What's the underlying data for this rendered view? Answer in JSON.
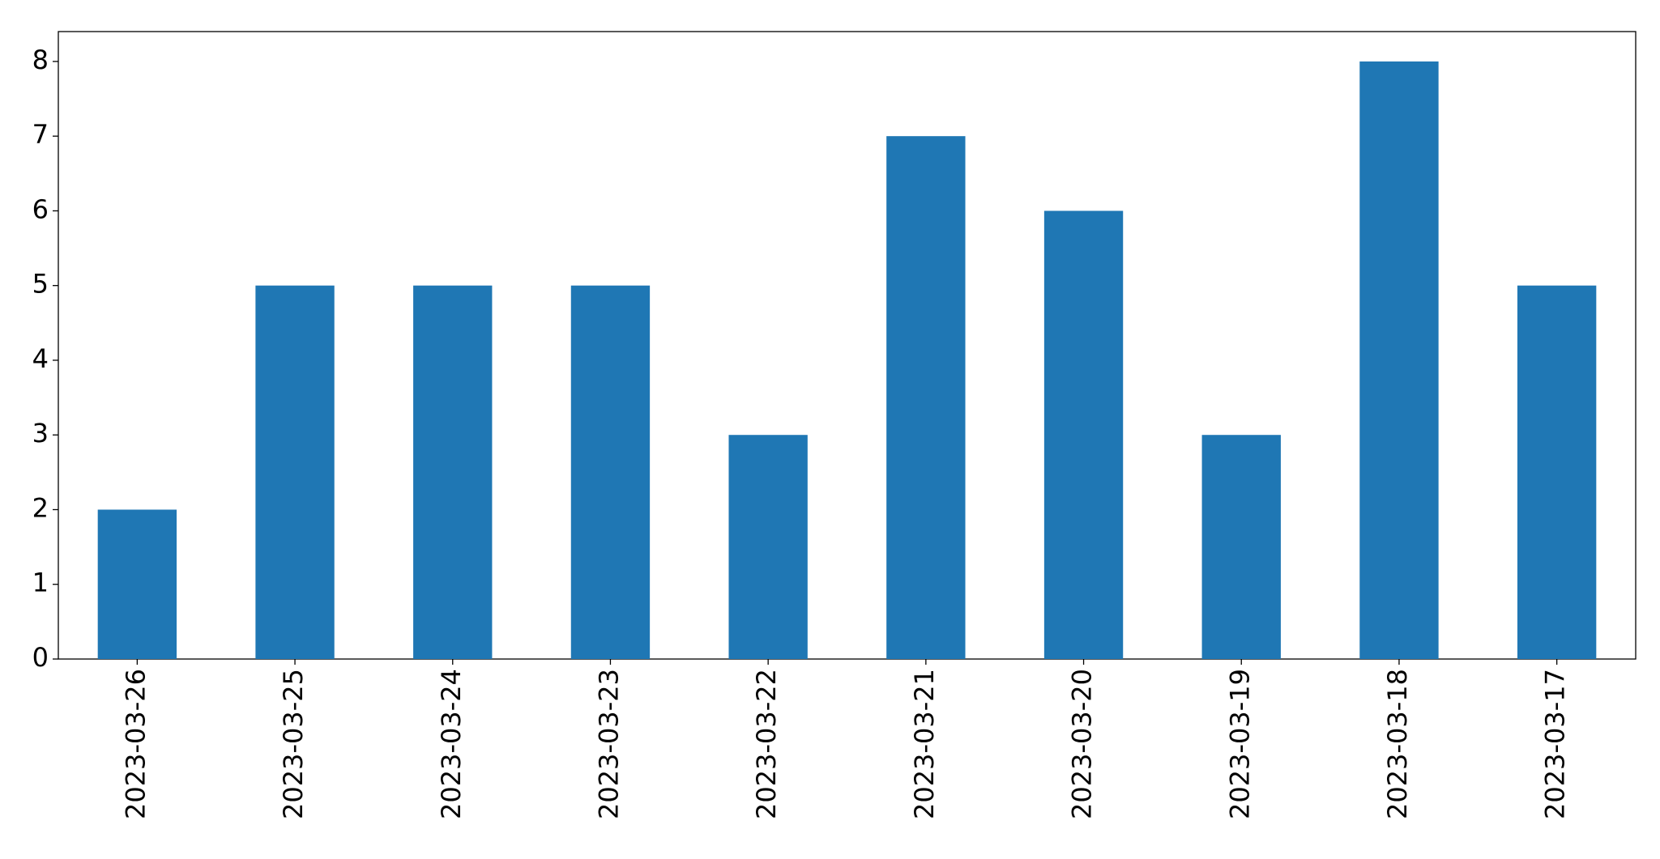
{
  "chart_data": {
    "type": "bar",
    "categories": [
      "2023-03-26",
      "2023-03-25",
      "2023-03-24",
      "2023-03-23",
      "2023-03-22",
      "2023-03-21",
      "2023-03-20",
      "2023-03-19",
      "2023-03-18",
      "2023-03-17"
    ],
    "values": [
      2,
      5,
      5,
      5,
      3,
      7,
      6,
      3,
      8,
      5
    ],
    "color": "#1f77b4",
    "ylim": [
      0,
      8.4
    ],
    "yticks": [
      0,
      1,
      2,
      3,
      4,
      5,
      6,
      7,
      8
    ],
    "grid": false
  }
}
